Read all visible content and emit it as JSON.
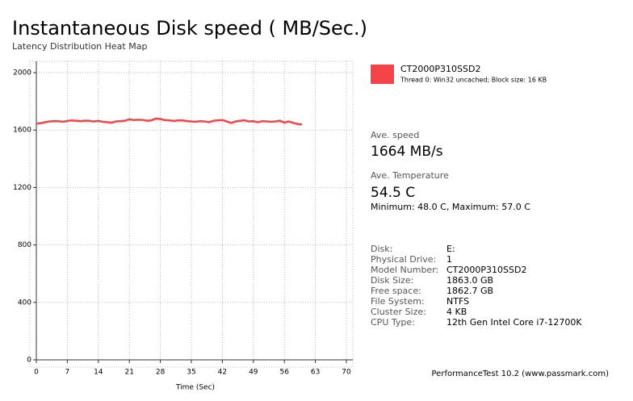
{
  "chart_data": {
    "type": "line",
    "title": "Instantaneous Disk speed ( MB/Sec.)",
    "subtitle": "Latency Distribution Heat Map",
    "x_label": "Time (Sec)",
    "x": [
      0,
      1,
      2,
      3,
      4,
      5,
      6,
      7,
      8,
      9,
      10,
      11,
      12,
      13,
      14,
      15,
      16,
      17,
      18,
      19,
      20,
      21,
      22,
      23,
      24,
      25,
      26,
      27,
      28,
      29,
      30,
      31,
      32,
      33,
      34,
      35,
      36,
      37,
      38,
      39,
      40,
      41,
      42,
      43,
      44,
      45,
      46,
      47,
      48,
      49,
      50,
      51,
      52,
      53,
      54,
      55,
      56,
      57,
      58,
      59,
      60
    ],
    "series": [
      {
        "name": "CT2000P310SSD2",
        "color": "#f54348",
        "detail": "Thread 0: Win32 uncached; Block size: 16 KB",
        "values": [
          1645,
          1648,
          1655,
          1660,
          1663,
          1662,
          1658,
          1664,
          1667,
          1665,
          1662,
          1666,
          1664,
          1660,
          1664,
          1658,
          1655,
          1652,
          1660,
          1662,
          1665,
          1675,
          1670,
          1672,
          1671,
          1665,
          1668,
          1680,
          1677,
          1670,
          1668,
          1664,
          1667,
          1668,
          1663,
          1660,
          1658,
          1662,
          1660,
          1655,
          1665,
          1668,
          1670,
          1660,
          1650,
          1660,
          1665,
          1668,
          1660,
          1662,
          1655,
          1662,
          1660,
          1658,
          1660,
          1665,
          1652,
          1660,
          1650,
          1642,
          1640
        ]
      }
    ],
    "xlim": [
      0,
      70
    ],
    "xticks": [
      0,
      7,
      14,
      21,
      28,
      35,
      42,
      49,
      56,
      63,
      70
    ],
    "ylim": [
      0,
      2000
    ],
    "yticks": [
      0,
      400,
      800,
      1200,
      1600,
      2000
    ],
    "grid": true
  },
  "panel": {
    "speed_label": "Ave. speed",
    "speed_value": "1664 MB/s",
    "temp_label": "Ave. Temperature",
    "temp_value": "54.5 C",
    "temp_range": "Minimum: 48.0 C, Maximum: 57.0 C",
    "disk_info": [
      [
        "Disk:",
        "E:"
      ],
      [
        "Physical Drive:",
        "1"
      ],
      [
        "Model Number:",
        "CT2000P310SSD2"
      ],
      [
        "Disk Size:",
        "1863.0 GB"
      ],
      [
        "Free space:",
        "1862.7 GB"
      ],
      [
        "File System:",
        "NTFS"
      ],
      [
        "Cluster Size:",
        "4 KB"
      ],
      [
        "CPU Type:",
        "12th Gen Intel Core i7-12700K"
      ]
    ],
    "footer": "PerformanceTest 10.2 (www.passmark.com)"
  }
}
